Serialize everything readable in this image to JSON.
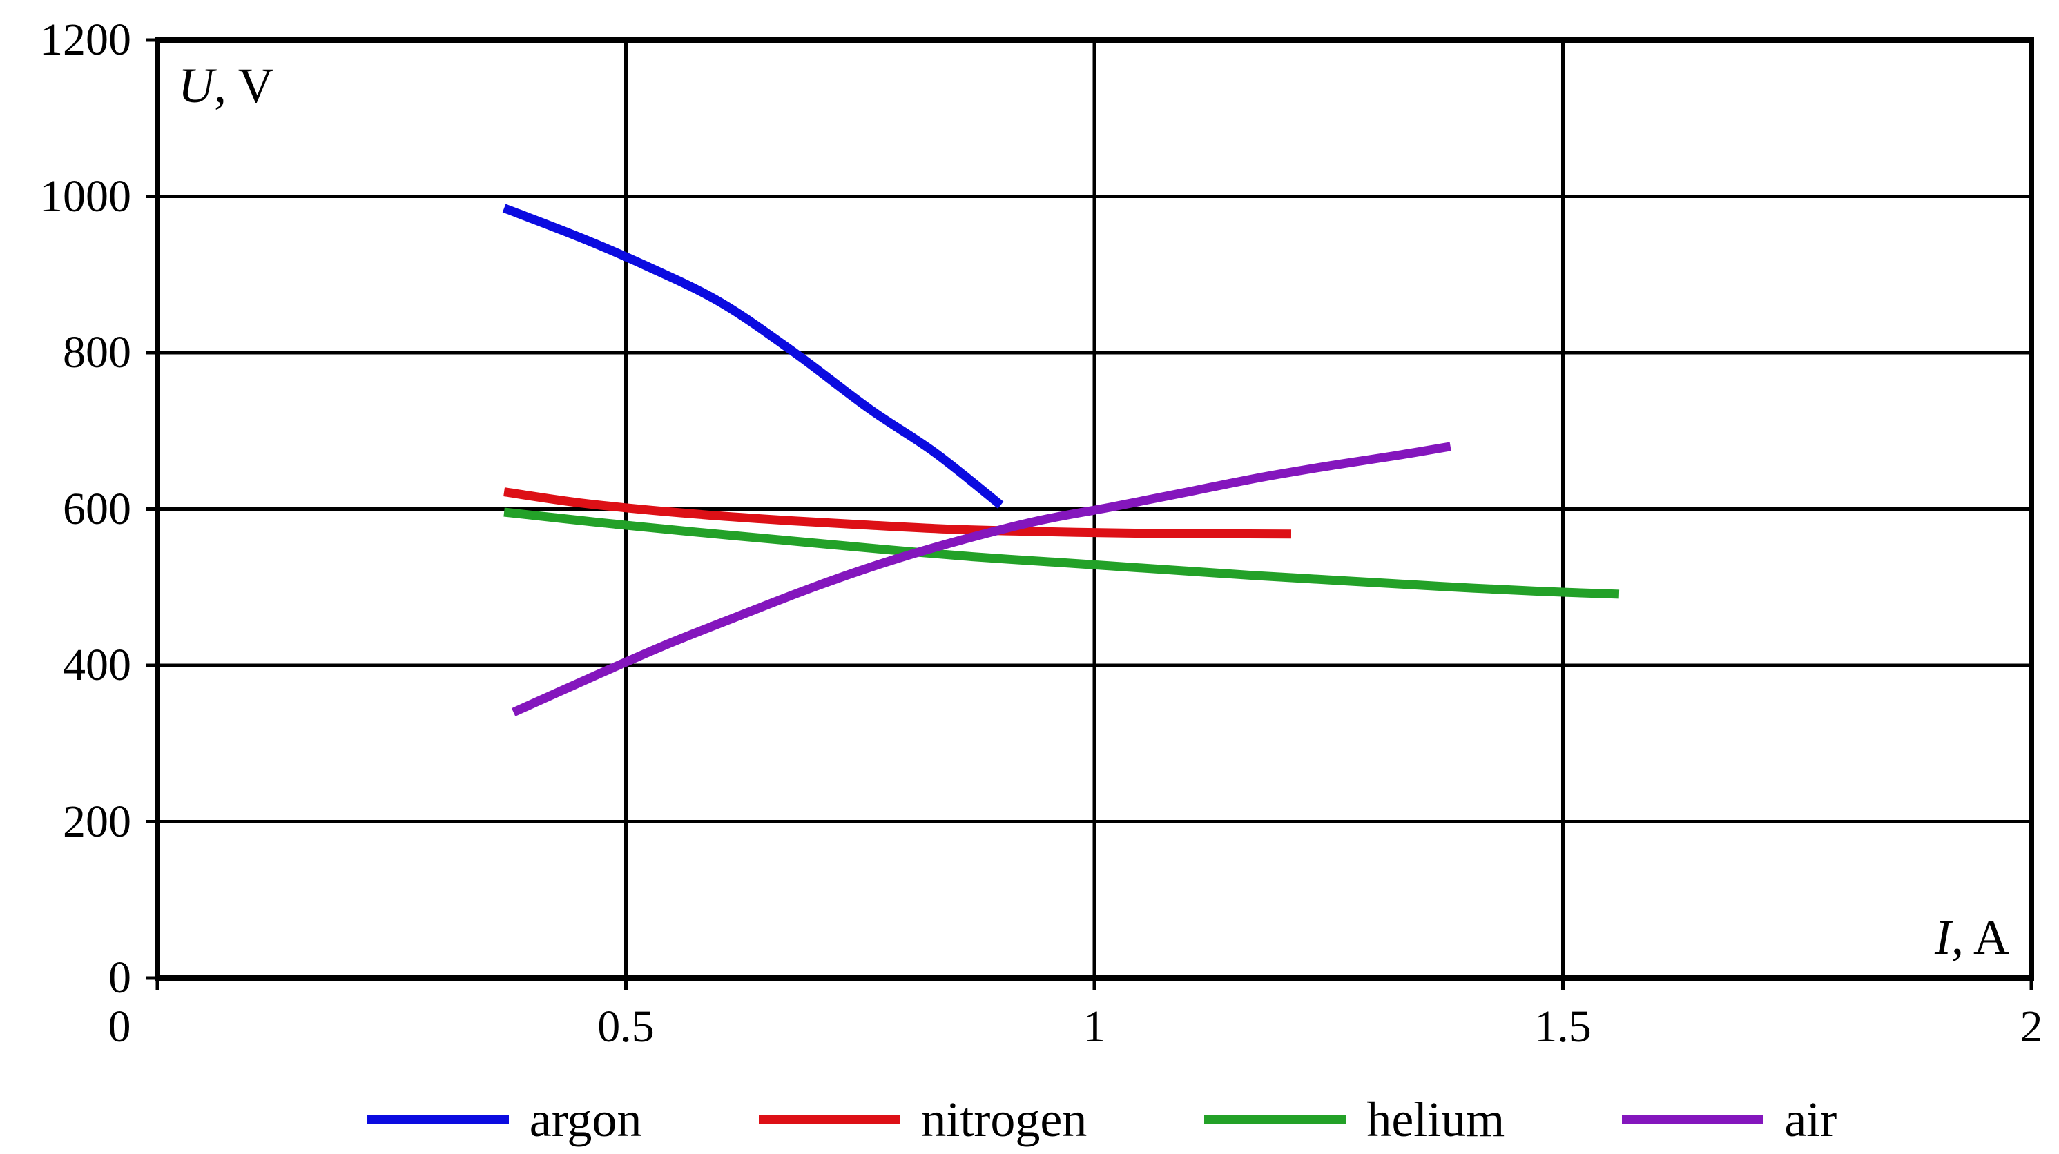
{
  "chart_data": {
    "type": "line",
    "title": "",
    "xlabel": "I, A",
    "xlabel_var": "I",
    "xlabel_unit": ", A",
    "ylabel": "U, V",
    "ylabel_var": "U",
    "ylabel_unit": ", V",
    "xlim": [
      0,
      2
    ],
    "ylim": [
      0,
      1200
    ],
    "x_tick_values": [
      0,
      0.5,
      1,
      1.5,
      2
    ],
    "x_tick_labels": [
      "0",
      "0.5",
      "1",
      "1.5",
      "2"
    ],
    "y_tick_values": [
      0,
      200,
      400,
      600,
      800,
      1000,
      1200
    ],
    "y_tick_labels": [
      "0",
      "200",
      "400",
      "600",
      "800",
      "1000",
      "1200"
    ],
    "grid": true,
    "legend_position": "bottom",
    "axis_color": "#000000",
    "background_color": "#ffffff",
    "series": [
      {
        "name": "argon",
        "color": "#0b0be0",
        "points": [
          [
            0.37,
            985
          ],
          [
            0.45,
            948
          ],
          [
            0.52,
            912
          ],
          [
            0.6,
            865
          ],
          [
            0.68,
            800
          ],
          [
            0.76,
            728
          ],
          [
            0.83,
            672
          ],
          [
            0.9,
            605
          ]
        ]
      },
      {
        "name": "nitrogen",
        "color": "#dd1016",
        "points": [
          [
            0.37,
            622
          ],
          [
            0.45,
            608
          ],
          [
            0.55,
            596
          ],
          [
            0.65,
            587
          ],
          [
            0.75,
            580
          ],
          [
            0.85,
            574
          ],
          [
            0.95,
            571
          ],
          [
            1.05,
            569
          ],
          [
            1.21,
            568
          ]
        ]
      },
      {
        "name": "helium",
        "color": "#23a128",
        "points": [
          [
            0.37,
            596
          ],
          [
            0.47,
            583
          ],
          [
            0.57,
            571
          ],
          [
            0.67,
            560
          ],
          [
            0.77,
            549
          ],
          [
            0.87,
            539
          ],
          [
            0.97,
            531
          ],
          [
            1.07,
            523
          ],
          [
            1.17,
            515
          ],
          [
            1.27,
            508
          ],
          [
            1.37,
            501
          ],
          [
            1.47,
            495
          ],
          [
            1.56,
            491
          ]
        ]
      },
      {
        "name": "air",
        "color": "#8416bd",
        "points": [
          [
            0.38,
            340
          ],
          [
            0.46,
            383
          ],
          [
            0.54,
            425
          ],
          [
            0.62,
            463
          ],
          [
            0.7,
            500
          ],
          [
            0.78,
            533
          ],
          [
            0.86,
            561
          ],
          [
            0.94,
            585
          ],
          [
            1.02,
            603
          ],
          [
            1.1,
            622
          ],
          [
            1.18,
            641
          ],
          [
            1.26,
            657
          ],
          [
            1.32,
            668
          ],
          [
            1.38,
            680
          ]
        ]
      }
    ]
  }
}
